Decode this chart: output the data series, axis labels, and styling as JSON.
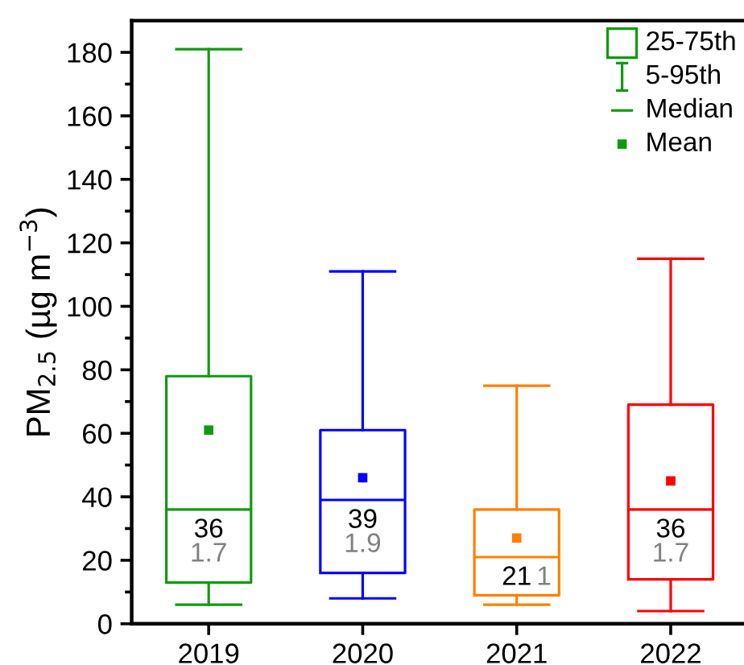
{
  "chart_data": {
    "type": "box",
    "ylabel": "PM$_{2.5}$ (µg m$^{−3}$)",
    "categories": [
      "2019",
      "2020",
      "2021",
      "2022"
    ],
    "colors": [
      "#119a11",
      "#0000ff",
      "#ff8000",
      "#ff0000"
    ],
    "boxes": [
      {
        "low": 6,
        "q1": 13,
        "median": 36,
        "q3": 78,
        "high": 181,
        "mean": 61
      },
      {
        "low": 8,
        "q1": 16,
        "median": 39,
        "q3": 61,
        "high": 111,
        "mean": 46
      },
      {
        "low": 6,
        "q1": 9,
        "median": 21,
        "q3": 36,
        "high": 75,
        "mean": 27
      },
      {
        "low": 4,
        "q1": 14,
        "median": 36,
        "q3": 69,
        "high": 115,
        "mean": 45
      }
    ],
    "ylim": [
      0,
      190
    ],
    "yticks": [
      0,
      {
        "value": 10,
        "label": null
      },
      20,
      {
        "value": 30,
        "label": null
      },
      40,
      {
        "value": 50,
        "label": null
      },
      60,
      {
        "value": 70,
        "label": null
      },
      80,
      {
        "value": 90,
        "label": null
      },
      100,
      {
        "value": 110,
        "label": null
      },
      120,
      {
        "value": 130,
        "label": null
      },
      140,
      {
        "value": 150,
        "label": null
      },
      160,
      {
        "value": 170,
        "label": null
      },
      180
    ],
    "marker": "square",
    "annotations": [
      "25-75th",
      "5-95th",
      "Median",
      "Mean",
      {
        "text": "36",
        "x": "2019",
        "y": 36
      },
      {
        "text": "1.7",
        "x": "2019",
        "y": 36
      },
      {
        "text": "39",
        "x": "2020",
        "y": 39
      },
      {
        "text": "1.9",
        "x": "2020",
        "y": 39
      },
      {
        "text": "21",
        "x": "2021",
        "y": 21
      },
      {
        "text": "1",
        "x": "2021",
        "y": 21
      },
      {
        "text": "36",
        "x": "2022",
        "y": 36
      },
      {
        "text": "1.7",
        "x": "2022",
        "y": 36
      }
    ]
  }
}
